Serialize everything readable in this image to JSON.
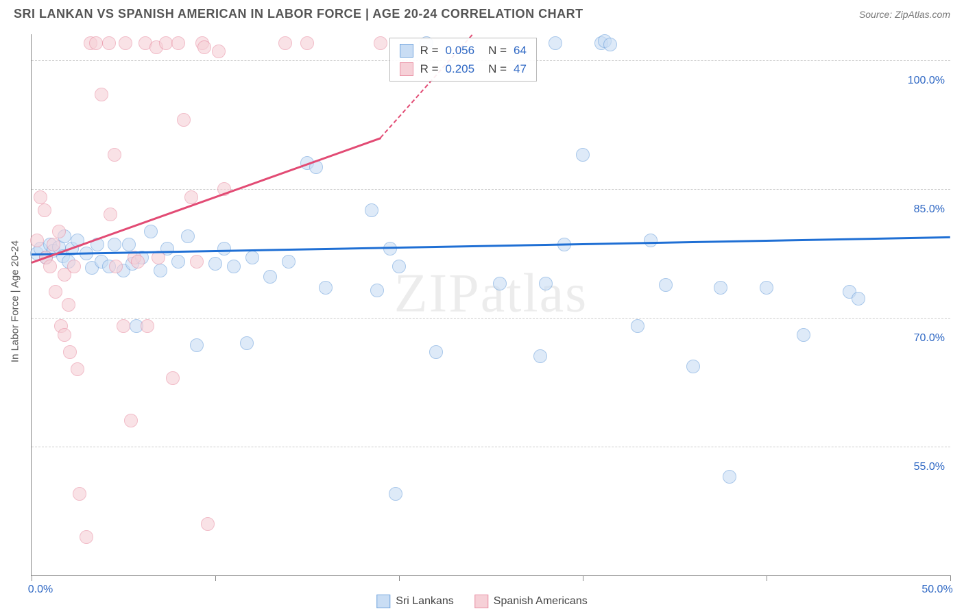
{
  "title": "SRI LANKAN VS SPANISH AMERICAN IN LABOR FORCE | AGE 20-24 CORRELATION CHART",
  "source": "Source: ZipAtlas.com",
  "ylabel": "In Labor Force | Age 20-24",
  "watermark": "ZIPatlas",
  "chart": {
    "type": "scatter",
    "xlim": [
      0,
      50
    ],
    "ylim": [
      40,
      103
    ],
    "xticks": [
      0,
      10,
      20,
      30,
      40,
      50
    ],
    "xtick_labels": [
      "0.0%",
      "",
      "",
      "",
      "",
      "50.0%"
    ],
    "yticks": [
      55,
      70,
      85,
      100
    ],
    "ytick_labels": [
      "55.0%",
      "70.0%",
      "85.0%",
      "100.0%"
    ],
    "background_color": "#ffffff",
    "grid_color": "#cccccc"
  },
  "series": [
    {
      "name": "Sri Lankans",
      "fill": "#c9ddf4",
      "stroke": "#6fa3dd",
      "trend_color": "#1f6fd4",
      "R": "0.056",
      "N": "64",
      "trend": {
        "x1": 0,
        "y1": 77.5,
        "x2": 50,
        "y2": 79.5
      },
      "points": [
        [
          0.3,
          77.5
        ],
        [
          0.5,
          78
        ],
        [
          0.8,
          77
        ],
        [
          1,
          78.5
        ],
        [
          1.2,
          77.8
        ],
        [
          1.5,
          78.2
        ],
        [
          1.7,
          77.2
        ],
        [
          1.8,
          79.5
        ],
        [
          2,
          76.5
        ],
        [
          2.2,
          78
        ],
        [
          2.5,
          79
        ],
        [
          3,
          77.5
        ],
        [
          3.3,
          75.8
        ],
        [
          3.6,
          78.5
        ],
        [
          3.8,
          76.5
        ],
        [
          4.2,
          76
        ],
        [
          4.5,
          78.5
        ],
        [
          5,
          75.5
        ],
        [
          5.3,
          78.5
        ],
        [
          5.5,
          76.3
        ],
        [
          5.7,
          69
        ],
        [
          6,
          77
        ],
        [
          6.5,
          80
        ],
        [
          7,
          75.5
        ],
        [
          7.4,
          78
        ],
        [
          8,
          76.5
        ],
        [
          8.5,
          79.5
        ],
        [
          9,
          66.8
        ],
        [
          10,
          76.3
        ],
        [
          10.5,
          78
        ],
        [
          11,
          76
        ],
        [
          11.7,
          67
        ],
        [
          12,
          77
        ],
        [
          13,
          74.8
        ],
        [
          14,
          76.5
        ],
        [
          15,
          88
        ],
        [
          15.5,
          87.5
        ],
        [
          16,
          73.5
        ],
        [
          18.5,
          82.5
        ],
        [
          18.8,
          73.2
        ],
        [
          19.5,
          78
        ],
        [
          19.8,
          49.5
        ],
        [
          20,
          76
        ],
        [
          21.5,
          102
        ],
        [
          22,
          66
        ],
        [
          25.5,
          74
        ],
        [
          27.7,
          65.5
        ],
        [
          28,
          74
        ],
        [
          28.5,
          102
        ],
        [
          29,
          78.5
        ],
        [
          30,
          89
        ],
        [
          31,
          102
        ],
        [
          33,
          69
        ],
        [
          33.7,
          79
        ],
        [
          34.5,
          73.8
        ],
        [
          36,
          64.3
        ],
        [
          37.5,
          73.5
        ],
        [
          38,
          51.5
        ],
        [
          40,
          73.5
        ],
        [
          42,
          68
        ],
        [
          44.5,
          73
        ],
        [
          45,
          72.2
        ],
        [
          31.2,
          102.2
        ],
        [
          31.5,
          101.8
        ]
      ]
    },
    {
      "name": "Spanish Americans",
      "fill": "#f6d0d7",
      "stroke": "#e990a4",
      "trend_color": "#e24b74",
      "R": "0.205",
      "N": "47",
      "trend": {
        "x1": 0,
        "y1": 76.5,
        "x2": 19,
        "y2": 91
      },
      "trend_ext": {
        "x1": 19,
        "y1": 91,
        "x2": 24,
        "y2": 103
      },
      "points": [
        [
          0.3,
          79
        ],
        [
          0.5,
          84
        ],
        [
          0.7,
          82.5
        ],
        [
          0.8,
          77
        ],
        [
          1,
          76
        ],
        [
          1.2,
          78.5
        ],
        [
          1.3,
          73
        ],
        [
          1.5,
          80
        ],
        [
          1.6,
          69
        ],
        [
          1.8,
          75
        ],
        [
          1.8,
          68
        ],
        [
          2,
          71.5
        ],
        [
          2.1,
          66
        ],
        [
          2.3,
          76
        ],
        [
          2.5,
          64
        ],
        [
          2.6,
          49.5
        ],
        [
          3,
          44.5
        ],
        [
          3.2,
          102
        ],
        [
          3.5,
          102
        ],
        [
          3.8,
          96
        ],
        [
          4.2,
          102
        ],
        [
          4.3,
          82
        ],
        [
          4.5,
          89
        ],
        [
          4.6,
          76
        ],
        [
          5,
          69
        ],
        [
          5.1,
          102
        ],
        [
          5.4,
          58
        ],
        [
          5.6,
          77
        ],
        [
          5.8,
          76.5
        ],
        [
          6.2,
          102
        ],
        [
          6.3,
          69
        ],
        [
          6.8,
          101.5
        ],
        [
          6.9,
          77
        ],
        [
          7.3,
          102
        ],
        [
          7.7,
          63
        ],
        [
          8,
          102
        ],
        [
          8.3,
          93
        ],
        [
          8.7,
          84
        ],
        [
          9,
          76.5
        ],
        [
          9.3,
          102
        ],
        [
          9.4,
          101.5
        ],
        [
          9.6,
          46
        ],
        [
          10.2,
          101
        ],
        [
          10.5,
          85
        ],
        [
          13.8,
          102
        ],
        [
          15,
          102
        ],
        [
          19,
          102
        ]
      ]
    }
  ],
  "legend": {
    "items": [
      "Sri Lankans",
      "Spanish Americans"
    ]
  },
  "stats_labels": {
    "R": "R =",
    "N": "N ="
  }
}
